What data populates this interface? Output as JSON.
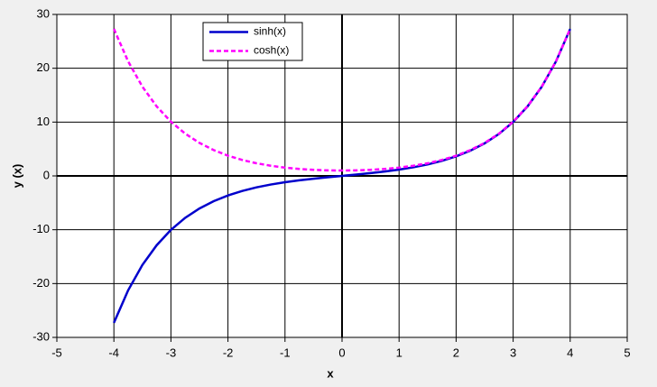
{
  "chart_data": {
    "type": "line",
    "xlabel": "x",
    "ylabel": "y (x)",
    "x": [
      -4,
      -3.75,
      -3.5,
      -3.25,
      -3,
      -2.75,
      -2.5,
      -2.25,
      -2,
      -1.75,
      -1.5,
      -1.25,
      -1,
      -0.75,
      -0.5,
      -0.25,
      0,
      0.25,
      0.5,
      0.75,
      1,
      1.25,
      1.5,
      1.75,
      2,
      2.25,
      2.5,
      2.75,
      3,
      3.25,
      3.5,
      3.75,
      4
    ],
    "series": [
      {
        "name": "sinh(x)",
        "color": "#0000cc",
        "line_style": "solid",
        "values": [
          -27.29,
          -21.25,
          -16.54,
          -12.88,
          -10.02,
          -7.79,
          -6.05,
          -4.69,
          -3.63,
          -2.79,
          -2.13,
          -1.6,
          -1.18,
          -0.82,
          -0.52,
          -0.25,
          0,
          0.25,
          0.52,
          0.82,
          1.18,
          1.6,
          2.13,
          2.79,
          3.63,
          4.69,
          6.05,
          7.79,
          10.02,
          12.88,
          16.54,
          21.25,
          27.29
        ]
      },
      {
        "name": "cosh(x)",
        "color": "#ff00ff",
        "line_style": "dashed",
        "values": [
          27.31,
          21.27,
          16.57,
          12.91,
          10.07,
          7.85,
          6.13,
          4.8,
          3.76,
          2.96,
          2.35,
          1.89,
          1.54,
          1.29,
          1.13,
          1.03,
          1,
          1.03,
          1.13,
          1.29,
          1.54,
          1.89,
          2.35,
          2.96,
          3.76,
          4.8,
          6.13,
          7.85,
          10.07,
          12.91,
          16.57,
          21.27,
          27.31
        ]
      }
    ],
    "xlim": [
      -5,
      5
    ],
    "xticks": [
      -5,
      -4,
      -3,
      -2,
      -1,
      0,
      1,
      2,
      3,
      4,
      5
    ],
    "ylim": [
      -30,
      30
    ],
    "yticks": [
      -30,
      -20,
      -10,
      0,
      10,
      20,
      30
    ],
    "grid": true,
    "legend": "top-left"
  }
}
